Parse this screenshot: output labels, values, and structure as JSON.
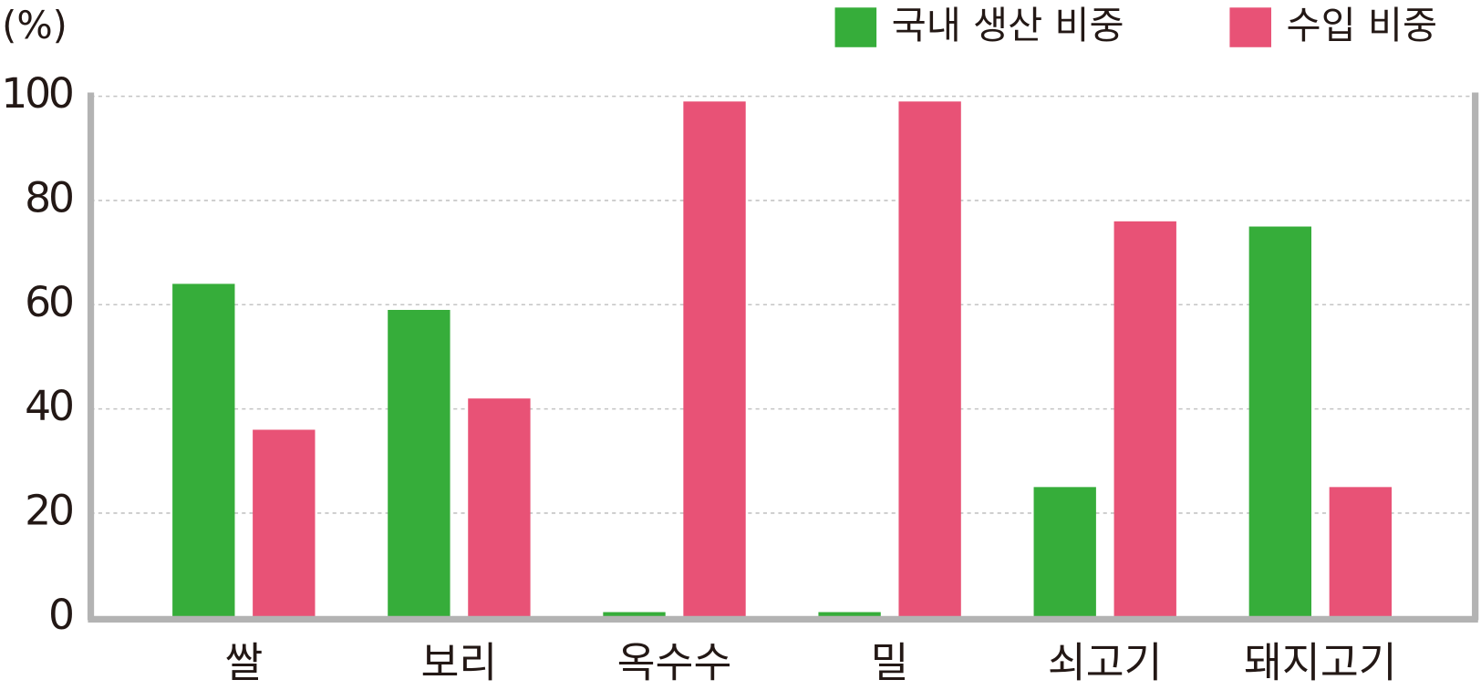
{
  "chart_data": {
    "type": "bar",
    "y_label": "(%)",
    "categories": [
      "쌀",
      "보리",
      "옥수수",
      "밀",
      "쇠고기",
      "돼지고기"
    ],
    "series": [
      {
        "name": "국내 생산 비중",
        "color": "#36ad3a",
        "values": [
          64,
          59,
          1,
          1,
          25,
          75
        ]
      },
      {
        "name": "수입 비중",
        "color": "#e85276",
        "values": [
          36,
          42,
          99,
          99,
          76,
          25
        ]
      }
    ],
    "ylim": [
      0,
      100
    ],
    "yticks": [
      0,
      20,
      40,
      60,
      80,
      100
    ],
    "grid": true,
    "legend": "top-right"
  }
}
